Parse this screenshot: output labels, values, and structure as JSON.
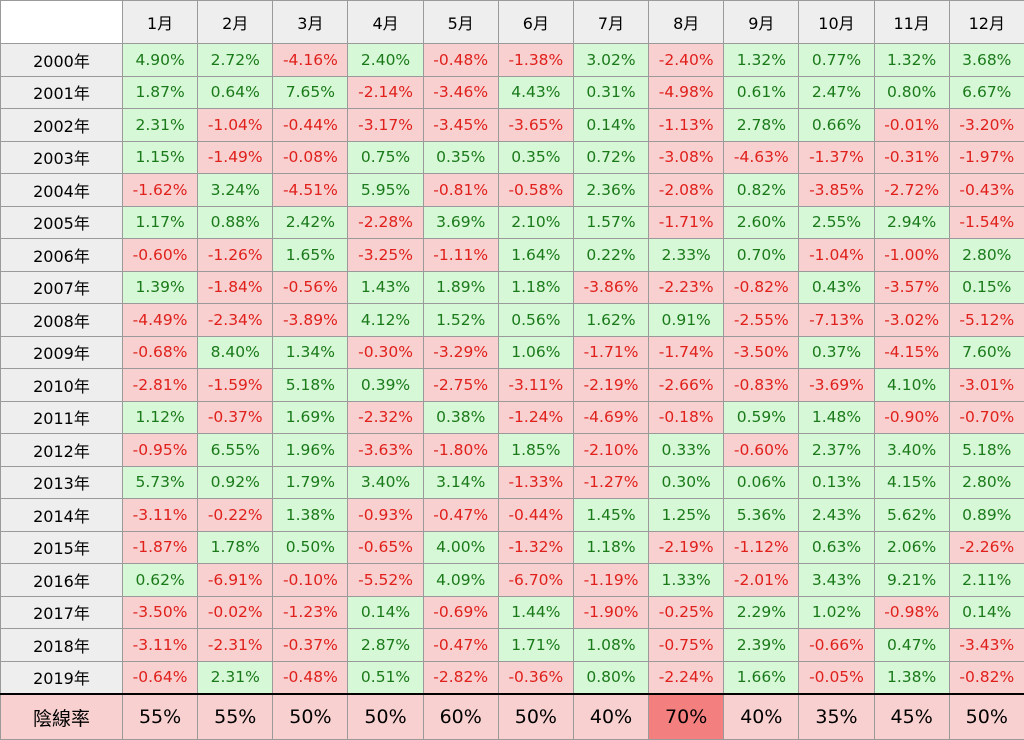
{
  "colors": {
    "positive_bg": "#d6f8d6",
    "positive_text": "#1a7a1a",
    "negative_bg": "#f8d0d0",
    "negative_text": "#e0201b",
    "highlight_bg": "#f47f7f",
    "header_bg": "#eeeeee"
  },
  "header": {
    "corner": "",
    "months": [
      "1月",
      "2月",
      "3月",
      "4月",
      "5月",
      "6月",
      "7月",
      "8月",
      "9月",
      "10月",
      "11月",
      "12月"
    ]
  },
  "rows": [
    {
      "year": "2000年",
      "values": [
        "4.90%",
        "2.72%",
        "-4.16%",
        "2.40%",
        "-0.48%",
        "-1.38%",
        "3.02%",
        "-2.40%",
        "1.32%",
        "0.77%",
        "1.32%",
        "3.68%"
      ]
    },
    {
      "year": "2001年",
      "values": [
        "1.87%",
        "0.64%",
        "7.65%",
        "-2.14%",
        "-3.46%",
        "4.43%",
        "0.31%",
        "-4.98%",
        "0.61%",
        "2.47%",
        "0.80%",
        "6.67%"
      ]
    },
    {
      "year": "2002年",
      "values": [
        "2.31%",
        "-1.04%",
        "-0.44%",
        "-3.17%",
        "-3.45%",
        "-3.65%",
        "0.14%",
        "-1.13%",
        "2.78%",
        "0.66%",
        "-0.01%",
        "-3.20%"
      ]
    },
    {
      "year": "2003年",
      "values": [
        "1.15%",
        "-1.49%",
        "-0.08%",
        "0.75%",
        "0.35%",
        "0.35%",
        "0.72%",
        "-3.08%",
        "-4.63%",
        "-1.37%",
        "-0.31%",
        "-1.97%"
      ]
    },
    {
      "year": "2004年",
      "values": [
        "-1.62%",
        "3.24%",
        "-4.51%",
        "5.95%",
        "-0.81%",
        "-0.58%",
        "2.36%",
        "-2.08%",
        "0.82%",
        "-3.85%",
        "-2.72%",
        "-0.43%"
      ]
    },
    {
      "year": "2005年",
      "values": [
        "1.17%",
        "0.88%",
        "2.42%",
        "-2.28%",
        "3.69%",
        "2.10%",
        "1.57%",
        "-1.71%",
        "2.60%",
        "2.55%",
        "2.94%",
        "-1.54%"
      ]
    },
    {
      "year": "2006年",
      "values": [
        "-0.60%",
        "-1.26%",
        "1.65%",
        "-3.25%",
        "-1.11%",
        "1.64%",
        "0.22%",
        "2.33%",
        "0.70%",
        "-1.04%",
        "-1.00%",
        "2.80%"
      ]
    },
    {
      "year": "2007年",
      "values": [
        "1.39%",
        "-1.84%",
        "-0.56%",
        "1.43%",
        "1.89%",
        "1.18%",
        "-3.86%",
        "-2.23%",
        "-0.82%",
        "0.43%",
        "-3.57%",
        "0.15%"
      ]
    },
    {
      "year": "2008年",
      "values": [
        "-4.49%",
        "-2.34%",
        "-3.89%",
        "4.12%",
        "1.52%",
        "0.56%",
        "1.62%",
        "0.91%",
        "-2.55%",
        "-7.13%",
        "-3.02%",
        "-5.12%"
      ]
    },
    {
      "year": "2009年",
      "values": [
        "-0.68%",
        "8.40%",
        "1.34%",
        "-0.30%",
        "-3.29%",
        "1.06%",
        "-1.71%",
        "-1.74%",
        "-3.50%",
        "0.37%",
        "-4.15%",
        "7.60%"
      ]
    },
    {
      "year": "2010年",
      "values": [
        "-2.81%",
        "-1.59%",
        "5.18%",
        "0.39%",
        "-2.75%",
        "-3.11%",
        "-2.19%",
        "-2.66%",
        "-0.83%",
        "-3.69%",
        "4.10%",
        "-3.01%"
      ]
    },
    {
      "year": "2011年",
      "values": [
        "1.12%",
        "-0.37%",
        "1.69%",
        "-2.32%",
        "0.38%",
        "-1.24%",
        "-4.69%",
        "-0.18%",
        "0.59%",
        "1.48%",
        "-0.90%",
        "-0.70%"
      ]
    },
    {
      "year": "2012年",
      "values": [
        "-0.95%",
        "6.55%",
        "1.96%",
        "-3.63%",
        "-1.80%",
        "1.85%",
        "-2.10%",
        "0.33%",
        "-0.60%",
        "2.37%",
        "3.40%",
        "5.18%"
      ]
    },
    {
      "year": "2013年",
      "values": [
        "5.73%",
        "0.92%",
        "1.79%",
        "3.40%",
        "3.14%",
        "-1.33%",
        "-1.27%",
        "0.30%",
        "0.06%",
        "0.13%",
        "4.15%",
        "2.80%"
      ]
    },
    {
      "year": "2014年",
      "values": [
        "-3.11%",
        "-0.22%",
        "1.38%",
        "-0.93%",
        "-0.47%",
        "-0.44%",
        "1.45%",
        "1.25%",
        "5.36%",
        "2.43%",
        "5.62%",
        "0.89%"
      ]
    },
    {
      "year": "2015年",
      "values": [
        "-1.87%",
        "1.78%",
        "0.50%",
        "-0.65%",
        "4.00%",
        "-1.32%",
        "1.18%",
        "-2.19%",
        "-1.12%",
        "0.63%",
        "2.06%",
        "-2.26%"
      ]
    },
    {
      "year": "2016年",
      "values": [
        "0.62%",
        "-6.91%",
        "-0.10%",
        "-5.52%",
        "4.09%",
        "-6.70%",
        "-1.19%",
        "1.33%",
        "-2.01%",
        "3.43%",
        "9.21%",
        "2.11%"
      ]
    },
    {
      "year": "2017年",
      "values": [
        "-3.50%",
        "-0.02%",
        "-1.23%",
        "0.14%",
        "-0.69%",
        "1.44%",
        "-1.90%",
        "-0.25%",
        "2.29%",
        "1.02%",
        "-0.98%",
        "0.14%"
      ]
    },
    {
      "year": "2018年",
      "values": [
        "-3.11%",
        "-2.31%",
        "-0.37%",
        "2.87%",
        "-0.47%",
        "1.71%",
        "1.08%",
        "-0.75%",
        "2.39%",
        "-0.66%",
        "0.47%",
        "-3.43%"
      ]
    },
    {
      "year": "2019年",
      "values": [
        "-0.64%",
        "2.31%",
        "-0.48%",
        "0.51%",
        "-2.82%",
        "-0.36%",
        "0.80%",
        "-2.24%",
        "1.66%",
        "-0.05%",
        "1.38%",
        "-0.82%"
      ]
    }
  ],
  "footer": {
    "label": "陰線率",
    "values": [
      "55%",
      "55%",
      "50%",
      "50%",
      "60%",
      "50%",
      "40%",
      "70%",
      "40%",
      "35%",
      "45%",
      "50%"
    ],
    "highlight_index": 7
  }
}
